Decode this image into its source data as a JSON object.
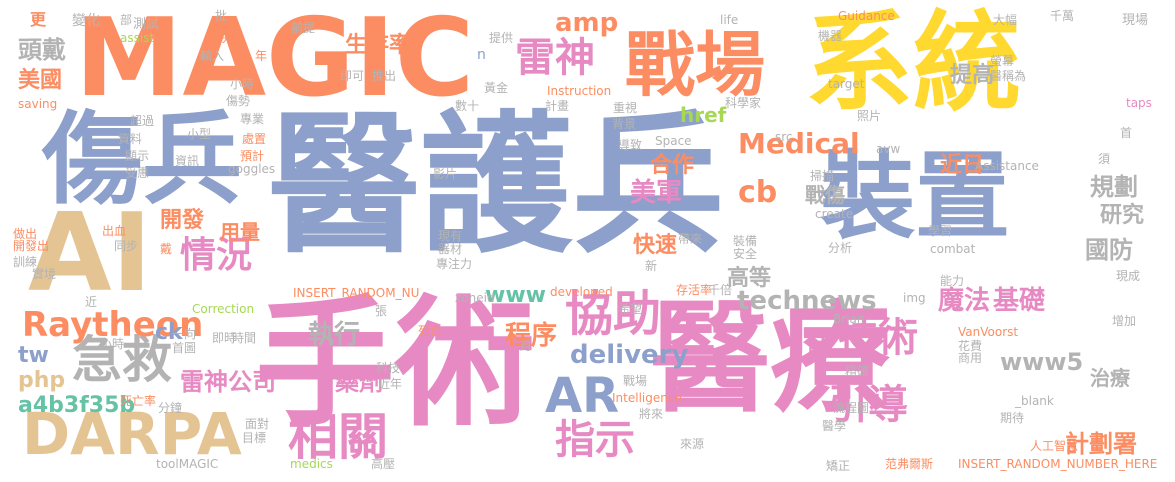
{
  "palette": {
    "orange": "#fc8d62",
    "blue": "#8da0cb",
    "pink": "#e78ac3",
    "green": "#a6d854",
    "yellow": "#ffd92f",
    "tan": "#e5c494",
    "gray": "#b3b3b3",
    "teal": "#66c2a5"
  },
  "words": [
    {
      "text": "醫護兵"
    },
    {
      "text": "醫療"
    },
    {
      "text": "手術"
    },
    {
      "text": "系統"
    },
    {
      "text": "MAGIC"
    },
    {
      "text": "傷兵"
    },
    {
      "text": "裝置"
    },
    {
      "text": "AI"
    },
    {
      "text": "戰場"
    },
    {
      "text": "DARPA"
    },
    {
      "text": "急救"
    },
    {
      "text": "相關"
    },
    {
      "text": "協助"
    },
    {
      "text": "AR"
    },
    {
      "text": "指示"
    },
    {
      "text": "技術"
    },
    {
      "text": "引導"
    },
    {
      "text": "雷神"
    },
    {
      "text": "Raytheon"
    },
    {
      "text": "情況"
    },
    {
      "text": "頭戴"
    },
    {
      "text": "Medical"
    },
    {
      "text": "technews"
    },
    {
      "text": "delivery"
    },
    {
      "text": "執行"
    },
    {
      "text": "規劃"
    },
    {
      "text": "國防"
    },
    {
      "text": "計劃署"
    },
    {
      "text": "程序"
    },
    {
      "text": "魔法"
    },
    {
      "text": "基礎"
    },
    {
      "text": "美軍"
    },
    {
      "text": "www5"
    },
    {
      "text": "cb"
    },
    {
      "text": "www"
    },
    {
      "text": "雷神公司"
    },
    {
      "text": "藥劑"
    },
    {
      "text": "a4b3f35b"
    },
    {
      "text": "php"
    },
    {
      "text": "tw"
    },
    {
      "text": "ck"
    },
    {
      "text": "研究"
    },
    {
      "text": "近日"
    },
    {
      "text": "提高"
    },
    {
      "text": "生存率"
    },
    {
      "text": "amp"
    },
    {
      "text": "美國"
    },
    {
      "text": "開發"
    },
    {
      "text": "合作"
    },
    {
      "text": "快速"
    },
    {
      "text": "高等"
    },
    {
      "text": "戰傷"
    },
    {
      "text": "時"
    },
    {
      "text": "治療"
    },
    {
      "text": "用量"
    },
    {
      "text": "href"
    },
    {
      "text": "更"
    },
    {
      "text": "變化"
    },
    {
      "text": "部"
    },
    {
      "text": "測試"
    },
    {
      "text": "批"
    },
    {
      "text": "life"
    },
    {
      "text": "Guidance"
    },
    {
      "text": "大幅"
    },
    {
      "text": "千萬"
    },
    {
      "text": "現場"
    },
    {
      "text": "assist"
    },
    {
      "text": "解決"
    },
    {
      "text": "前提"
    },
    {
      "text": "提供"
    },
    {
      "text": "機器"
    },
    {
      "text": "螢幕"
    },
    {
      "text": "醫稱為"
    },
    {
      "text": "輸入"
    },
    {
      "text": "年"
    },
    {
      "text": "即可"
    },
    {
      "text": "推出"
    },
    {
      "text": "n"
    },
    {
      "text": "target"
    },
    {
      "text": "saving"
    },
    {
      "text": "小時"
    },
    {
      "text": "傷勢"
    },
    {
      "text": "黃金"
    },
    {
      "text": "Instruction"
    },
    {
      "text": "計畫"
    },
    {
      "text": "科學家"
    },
    {
      "text": "taps"
    },
    {
      "text": "超過"
    },
    {
      "text": "專業"
    },
    {
      "text": "數十"
    },
    {
      "text": "重視"
    },
    {
      "text": "照片"
    },
    {
      "text": "資料"
    },
    {
      "text": "小型"
    },
    {
      "text": "背景"
    },
    {
      "text": "src"
    },
    {
      "text": "首"
    },
    {
      "text": "顯示"
    },
    {
      "text": "處置"
    },
    {
      "text": "導致"
    },
    {
      "text": "Space"
    },
    {
      "text": "avw"
    },
    {
      "text": "資訊"
    },
    {
      "text": "預計"
    },
    {
      "text": "goggles"
    },
    {
      "text": "受惠"
    },
    {
      "text": "影片"
    },
    {
      "text": "Assistance"
    },
    {
      "text": "須"
    },
    {
      "text": "掃描"
    },
    {
      "text": "學習"
    },
    {
      "text": "create"
    },
    {
      "text": "出血"
    },
    {
      "text": "做出"
    },
    {
      "text": "開發出"
    },
    {
      "text": "同步"
    },
    {
      "text": "訓練"
    },
    {
      "text": "實境"
    },
    {
      "text": "戴"
    },
    {
      "text": "現有"
    },
    {
      "text": "器材"
    },
    {
      "text": "專注力"
    },
    {
      "text": "帶來"
    },
    {
      "text": "新"
    },
    {
      "text": "裝備"
    },
    {
      "text": "安全"
    },
    {
      "text": "分析"
    },
    {
      "text": "combat"
    },
    {
      "text": "現成"
    },
    {
      "text": "能力"
    },
    {
      "text": "近"
    },
    {
      "text": "INSERT_RANDOM_NU"
    },
    {
      "text": "zoneid"
    },
    {
      "text": "developed"
    },
    {
      "text": "存活率"
    },
    {
      "text": "千倍"
    },
    {
      "text": "img"
    },
    {
      "text": "希望"
    },
    {
      "text": "Correction"
    },
    {
      "text": "張"
    },
    {
      "text": "Brian"
    },
    {
      "text": "增加"
    },
    {
      "text": "一向"
    },
    {
      "text": "死亡"
    },
    {
      "text": "VanVoorst"
    },
    {
      "text": "首圖"
    },
    {
      "text": "即時"
    },
    {
      "text": "時間"
    },
    {
      "text": "花費"
    },
    {
      "text": "商用"
    },
    {
      "text": "小時"
    },
    {
      "text": "月"
    },
    {
      "text": "科技"
    },
    {
      "text": "近年"
    },
    {
      "text": "精確"
    },
    {
      "text": "死亡率"
    },
    {
      "text": "分鐘"
    },
    {
      "text": "戰場"
    },
    {
      "text": "Intelligence"
    },
    {
      "text": "將來"
    },
    {
      "text": "_blank"
    },
    {
      "text": "流程圖"
    },
    {
      "text": "期待"
    },
    {
      "text": "面對"
    },
    {
      "text": "目標"
    },
    {
      "text": "醫學"
    },
    {
      "text": "來源"
    },
    {
      "text": "人工智慧"
    },
    {
      "text": "toolMAGIC"
    },
    {
      "text": "medics"
    },
    {
      "text": "高壓"
    },
    {
      "text": "矯正"
    },
    {
      "text": "范弗爾斯"
    },
    {
      "text": "INSERT_RANDOM_NUMBER_HERE"
    }
  ]
}
